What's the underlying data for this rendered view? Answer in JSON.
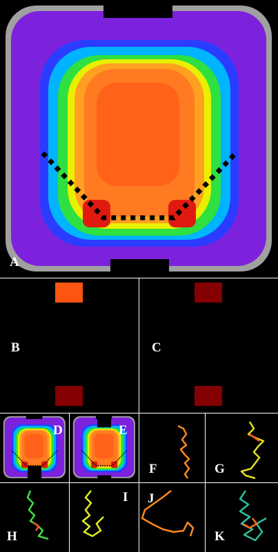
{
  "panels": [
    {
      "label": "A"
    },
    {
      "label": "B"
    },
    {
      "label": "C"
    },
    {
      "label": "D"
    },
    {
      "label": "E"
    },
    {
      "label": "F"
    },
    {
      "label": "G"
    },
    {
      "label": "H"
    },
    {
      "label": "I"
    },
    {
      "label": "J"
    },
    {
      "label": "K"
    }
  ]
}
